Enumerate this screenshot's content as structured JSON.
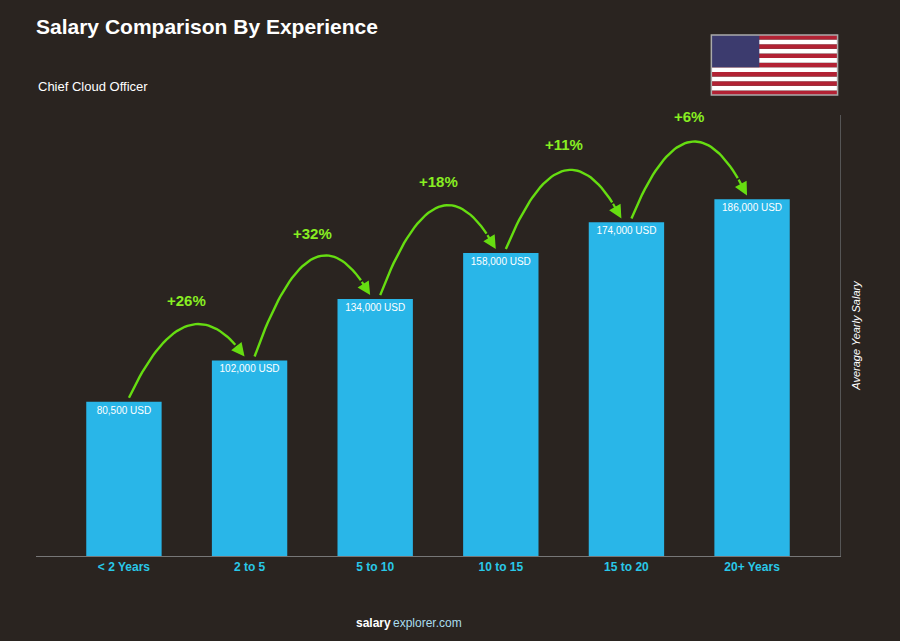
{
  "chart_data": {
    "type": "bar",
    "title": "Salary Comparison By Experience",
    "subtitle": "Chief Cloud Officer",
    "ylabel": "Average Yearly Salary",
    "categories": [
      "< 2 Years",
      "2 to 5",
      "5 to 10",
      "10 to 15",
      "15 to 20",
      "20+ Years"
    ],
    "values": [
      80500,
      102000,
      134000,
      158000,
      174000,
      186000
    ],
    "value_labels": [
      "80,500 USD",
      "102,000 USD",
      "134,000 USD",
      "158,000 USD",
      "174,000 USD",
      "186,000 USD"
    ],
    "data_labels": true,
    "annotations": [
      "+26%",
      "+32%",
      "+18%",
      "+11%",
      "+6%"
    ],
    "footer": [
      "salary",
      "explorer.com"
    ],
    "color": "#29b6e8",
    "ylim": [
      0,
      230000
    ],
    "grid": false,
    "tick_labels": "x"
  }
}
